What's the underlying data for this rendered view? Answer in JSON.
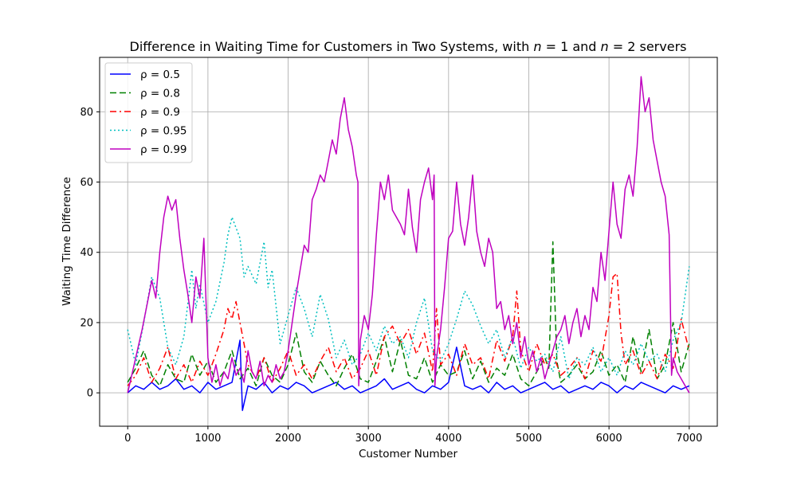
{
  "chart_data": {
    "type": "line",
    "title": "Difference in Waiting Time for Customers in Two Systems, with n = 1 and n = 2 servers",
    "title_parts": [
      "Difference in Waiting Time for Customers in Two Systems, with ",
      "n",
      " = 1 and ",
      "n",
      " = 2 servers"
    ],
    "xlabel": "Customer Number",
    "ylabel": "Waiting Time Difference",
    "xlim": [
      -350,
      7350
    ],
    "ylim": [
      -9.5,
      95.5
    ],
    "xticks": [
      0,
      1000,
      2000,
      3000,
      4000,
      5000,
      6000,
      7000
    ],
    "yticks": [
      0,
      20,
      40,
      60,
      80
    ],
    "grid": true,
    "legend_position": "upper-left",
    "series": [
      {
        "name": "ρ = 0.5",
        "color": "#0000ff",
        "dash": "solid",
        "x": [
          0,
          100,
          200,
          300,
          400,
          500,
          600,
          700,
          800,
          900,
          1000,
          1100,
          1200,
          1300,
          1400,
          1430,
          1500,
          1600,
          1700,
          1800,
          1900,
          2000,
          2100,
          2200,
          2300,
          2400,
          2500,
          2600,
          2700,
          2800,
          2900,
          3000,
          3100,
          3200,
          3300,
          3400,
          3500,
          3600,
          3700,
          3800,
          3900,
          4000,
          4100,
          4200,
          4300,
          4400,
          4500,
          4600,
          4700,
          4800,
          4900,
          5000,
          5100,
          5200,
          5300,
          5400,
          5500,
          5600,
          5700,
          5800,
          5900,
          6000,
          6100,
          6200,
          6300,
          6400,
          6500,
          6600,
          6700,
          6800,
          6900,
          7000
        ],
        "y": [
          0,
          2,
          1,
          3,
          1,
          2,
          4,
          1,
          2,
          0,
          3,
          1,
          2,
          3,
          15,
          -5,
          2,
          1,
          3,
          0,
          2,
          1,
          3,
          2,
          0,
          1,
          2,
          3,
          1,
          2,
          0,
          1,
          2,
          4,
          1,
          2,
          3,
          1,
          0,
          2,
          1,
          3,
          13,
          2,
          1,
          2,
          0,
          3,
          1,
          2,
          0,
          1,
          2,
          3,
          1,
          2,
          0,
          1,
          2,
          1,
          3,
          2,
          0,
          2,
          1,
          3,
          2,
          1,
          0,
          2,
          1,
          2
        ]
      },
      {
        "name": "ρ = 0.8",
        "color": "#008000",
        "dash": "8,4",
        "x": [
          0,
          100,
          200,
          300,
          400,
          500,
          600,
          700,
          800,
          900,
          1000,
          1100,
          1200,
          1300,
          1400,
          1500,
          1600,
          1700,
          1800,
          1900,
          2000,
          2100,
          2200,
          2300,
          2400,
          2500,
          2600,
          2700,
          2800,
          2900,
          3000,
          3100,
          3200,
          3300,
          3400,
          3500,
          3600,
          3700,
          3800,
          3900,
          4000,
          4100,
          4200,
          4300,
          4400,
          4500,
          4600,
          4700,
          4800,
          4900,
          5000,
          5100,
          5200,
          5250,
          5300,
          5350,
          5400,
          5500,
          5600,
          5700,
          5800,
          5900,
          6000,
          6100,
          6200,
          6300,
          6400,
          6500,
          6600,
          6700,
          6800,
          6900,
          7000
        ],
        "y": [
          3,
          7,
          12,
          5,
          2,
          8,
          4,
          3,
          11,
          5,
          9,
          3,
          6,
          12,
          4,
          7,
          2,
          10,
          5,
          3,
          8,
          17,
          6,
          3,
          9,
          5,
          2,
          7,
          11,
          4,
          3,
          9,
          16,
          6,
          15,
          5,
          4,
          10,
          3,
          8,
          5,
          6,
          12,
          4,
          9,
          3,
          7,
          5,
          11,
          4,
          2,
          6,
          10,
          7,
          43,
          9,
          3,
          5,
          8,
          4,
          6,
          12,
          5,
          8,
          3,
          16,
          6,
          18,
          4,
          8,
          20,
          6,
          14
        ]
      },
      {
        "name": "ρ = 0.9",
        "color": "#ff0000",
        "dash": "8,4,2,4",
        "x": [
          0,
          100,
          200,
          300,
          400,
          500,
          600,
          700,
          800,
          900,
          1000,
          1100,
          1200,
          1250,
          1300,
          1350,
          1400,
          1500,
          1600,
          1700,
          1800,
          1900,
          2000,
          2100,
          2200,
          2300,
          2400,
          2500,
          2600,
          2700,
          2800,
          2900,
          3000,
          3100,
          3200,
          3300,
          3400,
          3500,
          3600,
          3700,
          3800,
          3850,
          3900,
          4000,
          4100,
          4200,
          4300,
          4400,
          4500,
          4600,
          4700,
          4800,
          4850,
          4900,
          5000,
          5100,
          5200,
          5300,
          5400,
          5500,
          5600,
          5700,
          5800,
          5900,
          6000,
          6050,
          6100,
          6150,
          6200,
          6300,
          6400,
          6500,
          6600,
          6700,
          6800,
          6900,
          7000
        ],
        "y": [
          2,
          5,
          10,
          3,
          7,
          13,
          4,
          8,
          3,
          9,
          5,
          11,
          18,
          24,
          21,
          26,
          20,
          8,
          4,
          10,
          3,
          7,
          12,
          5,
          8,
          4,
          9,
          13,
          6,
          10,
          4,
          7,
          12,
          5,
          16,
          19,
          14,
          18,
          11,
          17,
          6,
          24,
          8,
          11,
          5,
          14,
          8,
          10,
          4,
          15,
          9,
          16,
          29,
          12,
          6,
          14,
          8,
          11,
          5,
          7,
          10,
          4,
          12,
          9,
          22,
          33,
          34,
          17,
          8,
          12,
          5,
          9,
          4,
          11,
          7,
          21,
          12
        ]
      },
      {
        "name": "ρ = 0.95",
        "color": "#00bfbf",
        "dash": "2,3",
        "x": [
          0,
          100,
          200,
          300,
          400,
          500,
          600,
          700,
          800,
          850,
          900,
          1000,
          1100,
          1200,
          1250,
          1300,
          1400,
          1450,
          1500,
          1600,
          1700,
          1750,
          1800,
          1900,
          2000,
          2100,
          2200,
          2300,
          2400,
          2500,
          2600,
          2700,
          2800,
          2900,
          3000,
          3100,
          3200,
          3300,
          3400,
          3500,
          3600,
          3700,
          3800,
          3900,
          4000,
          4100,
          4200,
          4300,
          4400,
          4500,
          4600,
          4700,
          4800,
          4900,
          5000,
          5100,
          5200,
          5300,
          5400,
          5500,
          5600,
          5700,
          5800,
          5900,
          6000,
          6100,
          6200,
          6300,
          6400,
          6500,
          6600,
          6700,
          6800,
          6900,
          7000
        ],
        "y": [
          18,
          8,
          20,
          33,
          27,
          13,
          8,
          16,
          35,
          24,
          31,
          20,
          26,
          37,
          45,
          50,
          44,
          33,
          36,
          31,
          43,
          30,
          35,
          14,
          22,
          30,
          24,
          16,
          28,
          21,
          10,
          15,
          8,
          11,
          17,
          12,
          19,
          14,
          16,
          10,
          20,
          27,
          12,
          9,
          14,
          21,
          29,
          25,
          19,
          14,
          18,
          10,
          16,
          7,
          13,
          9,
          11,
          6,
          16,
          4,
          10,
          8,
          13,
          6,
          10,
          5,
          12,
          8,
          14,
          9,
          11,
          6,
          15,
          20,
          36
        ]
      },
      {
        "name": "ρ = 0.99",
        "color": "#bf00bf",
        "dash": "solid",
        "x": [
          0,
          60,
          120,
          180,
          240,
          300,
          350,
          400,
          450,
          500,
          550,
          600,
          650,
          700,
          750,
          800,
          850,
          900,
          950,
          1000,
          1050,
          1100,
          1150,
          1200,
          1250,
          1300,
          1350,
          1400,
          1450,
          1500,
          1550,
          1600,
          1650,
          1700,
          1750,
          1800,
          1850,
          1900,
          1950,
          2000,
          2050,
          2100,
          2150,
          2200,
          2250,
          2300,
          2350,
          2400,
          2450,
          2500,
          2550,
          2600,
          2650,
          2700,
          2750,
          2800,
          2850,
          2870,
          2880,
          2900,
          2950,
          3000,
          3050,
          3100,
          3150,
          3200,
          3250,
          3300,
          3350,
          3400,
          3450,
          3500,
          3550,
          3600,
          3650,
          3700,
          3750,
          3800,
          3820,
          3830,
          3850,
          3900,
          3950,
          4000,
          4050,
          4100,
          4150,
          4200,
          4250,
          4300,
          4350,
          4400,
          4450,
          4500,
          4550,
          4600,
          4650,
          4700,
          4750,
          4800,
          4850,
          4900,
          4950,
          5000,
          5050,
          5100,
          5150,
          5200,
          5250,
          5300,
          5350,
          5400,
          5450,
          5500,
          5550,
          5600,
          5650,
          5700,
          5750,
          5800,
          5850,
          5900,
          5950,
          6000,
          6050,
          6100,
          6150,
          6200,
          6250,
          6300,
          6350,
          6400,
          6450,
          6500,
          6550,
          6600,
          6650,
          6700,
          6750,
          6780,
          6800,
          6850,
          6900,
          6950,
          7000
        ],
        "y": [
          0,
          6,
          12,
          18,
          25,
          32,
          27,
          40,
          50,
          56,
          52,
          55,
          44,
          35,
          28,
          20,
          33,
          27,
          44,
          10,
          3,
          8,
          2,
          6,
          4,
          10,
          5,
          7,
          3,
          12,
          6,
          4,
          9,
          2,
          5,
          3,
          8,
          4,
          6,
          12,
          20,
          28,
          35,
          42,
          40,
          55,
          58,
          62,
          60,
          66,
          72,
          68,
          78,
          84,
          75,
          70,
          62,
          60,
          2,
          15,
          22,
          18,
          28,
          45,
          60,
          55,
          62,
          52,
          50,
          48,
          45,
          58,
          47,
          40,
          55,
          60,
          64,
          55,
          62,
          2,
          10,
          18,
          30,
          44,
          46,
          60,
          48,
          42,
          50,
          62,
          46,
          40,
          36,
          44,
          40,
          24,
          26,
          18,
          22,
          14,
          20,
          10,
          16,
          8,
          12,
          6,
          10,
          4,
          8,
          12,
          16,
          18,
          22,
          14,
          20,
          24,
          16,
          22,
          18,
          30,
          26,
          40,
          32,
          46,
          60,
          48,
          44,
          58,
          62,
          56,
          70,
          90,
          80,
          84,
          72,
          66,
          60,
          56,
          45,
          5,
          10,
          6,
          4,
          2,
          0
        ]
      }
    ]
  }
}
